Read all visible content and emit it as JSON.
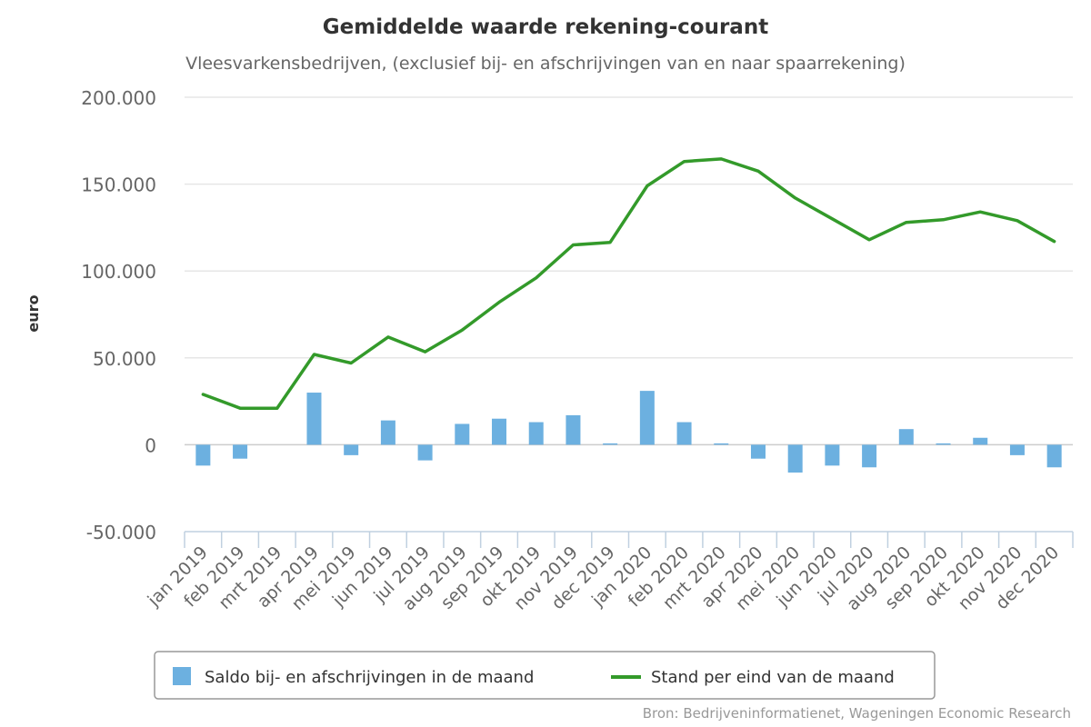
{
  "chart_data": {
    "type": "bar",
    "title": "Gemiddelde waarde rekening-courant",
    "subtitle": "Vleesvarkensbedrijven, (exclusief bij- en afschrijvingen van en naar spaarrekening)",
    "ylabel": "euro",
    "xlabel": "",
    "ylim": [
      -50000,
      200000
    ],
    "yticks": [
      -50000,
      0,
      50000,
      100000,
      150000,
      200000
    ],
    "ytick_labels": [
      "-50.000",
      "0",
      "50.000",
      "100.000",
      "150.000",
      "200.000"
    ],
    "grid": true,
    "legend_position": "bottom",
    "categories": [
      "jan 2019",
      "feb 2019",
      "mrt 2019",
      "apr 2019",
      "mei 2019",
      "jun 2019",
      "jul 2019",
      "aug 2019",
      "sep 2019",
      "okt 2019",
      "nov 2019",
      "dec 2019",
      "jan 2020",
      "feb 2020",
      "mrt 2020",
      "apr 2020",
      "mei 2020",
      "jun 2020",
      "jul 2020",
      "aug 2020",
      "sep 2020",
      "okt 2020",
      "nov 2020",
      "dec 2020"
    ],
    "series": [
      {
        "name": "Saldo bij- en afschrijvingen in de maand",
        "type": "bar",
        "color": "#6cb0e0",
        "values": [
          -12000,
          -8000,
          0,
          30000,
          -6000,
          14000,
          -9000,
          12000,
          15000,
          13000,
          17000,
          500,
          31000,
          13000,
          500,
          -8000,
          -16000,
          -12000,
          -13000,
          9000,
          500,
          4000,
          -6000,
          -13000
        ]
      },
      {
        "name": "Stand per eind van de maand",
        "type": "line",
        "color": "#339a2a",
        "values": [
          29000,
          21000,
          21000,
          52000,
          47000,
          62000,
          53500,
          66000,
          82000,
          96000,
          115000,
          116500,
          149000,
          163000,
          164500,
          157500,
          142000,
          130000,
          118000,
          128000,
          129500,
          134000,
          129000,
          117000
        ]
      }
    ]
  },
  "source": "Bron: Bedrijveninformatienet, Wageningen Economic Research"
}
